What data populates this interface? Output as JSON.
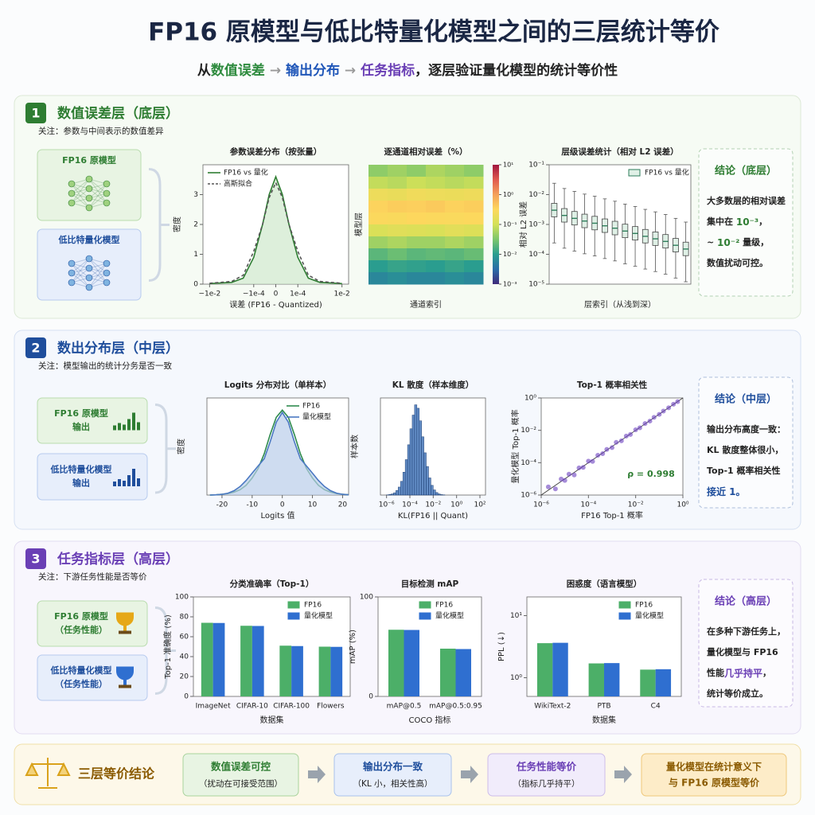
{
  "header": {
    "title": "FP16 原模型与低比特量化模型之间的三层统计等价",
    "subtitle": [
      {
        "text": "从",
        "color": "#222"
      },
      {
        "text": "数值误差",
        "color": "#2e8b3e"
      },
      {
        "text": " → ",
        "color": "#999"
      },
      {
        "text": "输出分布",
        "color": "#1f56b8"
      },
      {
        "text": " → ",
        "color": "#999"
      },
      {
        "text": "任务指标",
        "color": "#6a3fb5"
      },
      {
        "text": "，逐层验证量化模型的统计等价性",
        "color": "#222"
      }
    ]
  },
  "layers": [
    {
      "number": "1",
      "title": "数值误差层（底层）",
      "color": "#2e7d32",
      "note": "关注：参数与中间表示的数值差异",
      "inputs": [
        [
          "FP16 原模型"
        ],
        [
          "低比特量化模型"
        ]
      ],
      "conclusion": {
        "title": "结论（底层）",
        "lines": [
          [
            {
              "text": "大多数层的相对误差",
              "hl": false
            }
          ],
          [
            {
              "text": "集中在 ",
              "hl": false
            },
            {
              "text": "10⁻³",
              "hl": true
            },
            {
              "text": "，",
              "hl": false
            }
          ],
          [
            {
              "text": "~ ",
              "hl": false
            },
            {
              "text": "10⁻²",
              "hl": true
            },
            {
              "text": " 量级，",
              "hl": false
            }
          ],
          [
            {
              "text": "数值扰动可控。",
              "hl": false
            }
          ]
        ]
      }
    },
    {
      "number": "2",
      "title": "数出分布层（中层）",
      "color": "#1f4e9c",
      "note": "关注：模型输出的统计分务是否一致",
      "inputs": [
        [
          "FP16 原模型",
          "输出"
        ],
        [
          "低比特量化模型",
          "输出"
        ]
      ],
      "conclusion": {
        "title": "结论（中层）",
        "lines": [
          [
            {
              "text": "输出分布高度一致：",
              "hl": false
            }
          ],
          [
            {
              "text": "KL 散度整体很小，",
              "hl": false
            }
          ],
          [
            {
              "text": "Top-1 概率相关性",
              "hl": false
            }
          ],
          [
            {
              "text": "接近 1。",
              "hl": true
            }
          ]
        ]
      }
    },
    {
      "number": "3",
      "title": "任务指标层（高层）",
      "color": "#6a3fb5",
      "note": "关注：下游任务性能是否等价",
      "inputs": [
        [
          "FP16 原模型",
          "（任务性能）"
        ],
        [
          "低比特量化模型",
          "（任务性能）"
        ]
      ],
      "conclusion": {
        "title": "结论（高层）",
        "lines": [
          [
            {
              "text": "在多种下游任务上，",
              "hl": false
            }
          ],
          [
            {
              "text": "量化模型与 FP16",
              "hl": false
            }
          ],
          [
            {
              "text": "性能",
              "hl": false
            },
            {
              "text": "几乎持平",
              "hl": true
            },
            {
              "text": "，",
              "hl": false
            }
          ],
          [
            {
              "text": "统计等价成立。",
              "hl": false
            }
          ]
        ]
      }
    }
  ],
  "footer": {
    "title": "三层等价结论",
    "steps": [
      {
        "title": "数值误差可控",
        "sub": "（扰动在可接受范围）"
      },
      {
        "title": "输出分布一致",
        "sub": "（KL 小，相关性高）"
      },
      {
        "title": "任务性能等价",
        "sub": "（指标几乎持平）"
      }
    ],
    "result": [
      "量化模型在统计意义下",
      "与 FP16 原模型等价"
    ]
  },
  "chart_data": [
    {
      "type": "line",
      "title": "参数误差分布（按张量）",
      "xlabel": "误差 (FP16 - Quantized)",
      "ylabel": "密度",
      "xscale": "symlog",
      "linthresh": 0.0001,
      "xlim": [
        -0.02,
        0.02
      ],
      "ylim": [
        0,
        4
      ],
      "xticks": [
        {
          "value": -0.01,
          "label": "−1e-2"
        },
        {
          "value": -0.0001,
          "label": "−1e-4"
        },
        0,
        {
          "value": 0.0001,
          "label": "1e-4"
        },
        {
          "value": 0.01,
          "label": "1e-2"
        }
      ],
      "yticks": [
        0,
        1,
        2,
        3
      ],
      "legend": "upper left",
      "x": [
        -0.01,
        -0.001,
        -0.0003,
        -0.0001,
        -6e-05,
        -3e-05,
        0,
        3e-05,
        6e-05,
        0.0001,
        0.0003,
        0.001,
        0.01
      ],
      "series": [
        {
          "name": "FP16 vs 量化",
          "color": "#2e7d32",
          "fill": "#cfe8cc",
          "dash": false,
          "values": [
            0.02,
            0.06,
            0.2,
            0.9,
            2.0,
            3.0,
            3.6,
            3.0,
            2.0,
            0.9,
            0.2,
            0.06,
            0.02
          ]
        },
        {
          "name": "高斯拟合",
          "color": "#555555",
          "dash": true,
          "values": [
            0.03,
            0.09,
            0.3,
            1.1,
            2.0,
            2.9,
            3.4,
            2.9,
            2.0,
            1.1,
            0.3,
            0.09,
            0.03
          ]
        }
      ]
    },
    {
      "type": "heatmap",
      "title": "逐通道相对误差（%）",
      "xlabel": "通道索引",
      "ylabel": "模型层",
      "zscale": "log",
      "zlim": [
        0.001,
        10
      ],
      "zticks": [
        {
          "value": 0.001,
          "label": "10⁻³"
        },
        {
          "value": 0.01,
          "label": "10⁻²"
        },
        {
          "value": 0.1,
          "label": "10⁻¹"
        },
        {
          "value": 1,
          "label": "10⁰"
        },
        {
          "value": 10,
          "label": "10¹"
        }
      ],
      "colormap": [
        "#3f2a7a",
        "#2b6ca8",
        "#2a9d8f",
        "#7cc66c",
        "#d4e157",
        "#fdd85d",
        "#f4a15a",
        "#e05a4f",
        "#a0153e"
      ],
      "z": [
        [
          0.04,
          0.05,
          0.04,
          0.06,
          0.05,
          0.04
        ],
        [
          0.08,
          0.07,
          0.09,
          0.08,
          0.07,
          0.08
        ],
        [
          0.2,
          0.18,
          0.22,
          0.2,
          0.19,
          0.21
        ],
        [
          0.35,
          0.4,
          0.38,
          0.42,
          0.36,
          0.39
        ],
        [
          0.3,
          0.28,
          0.32,
          0.3,
          0.29,
          0.31
        ],
        [
          0.12,
          0.14,
          0.13,
          0.12,
          0.15,
          0.13
        ],
        [
          0.05,
          0.06,
          0.05,
          0.05,
          0.06,
          0.05
        ],
        [
          0.02,
          0.025,
          0.02,
          0.022,
          0.02,
          0.024
        ],
        [
          0.01,
          0.012,
          0.011,
          0.01,
          0.012,
          0.01
        ],
        [
          0.006,
          0.007,
          0.006,
          0.006,
          0.007,
          0.006
        ]
      ]
    },
    {
      "type": "box",
      "title": "层级误差统计（相对 L2 误差）",
      "xlabel": "层索引（从浅到深）",
      "ylabel": "相对 L2 误差",
      "yscale": "log",
      "ylim": [
        1e-05,
        0.1
      ],
      "yticks": [
        {
          "value": 1e-05,
          "label": "10⁻⁵"
        },
        {
          "value": 0.0001,
          "label": "10⁻⁴"
        },
        {
          "value": 0.001,
          "label": "10⁻³"
        },
        {
          "value": 0.01,
          "label": "10⁻²"
        },
        {
          "value": 0.1,
          "label": "10⁻¹"
        }
      ],
      "legend": "upper right",
      "series": [
        {
          "name": "FP16 vs 量化",
          "color": "#2e7d5b",
          "fill": "#dff0e6",
          "boxes": [
            {
              "min": 0.00024,
              "q1": 0.0018,
              "median": 0.003,
              "q3": 0.0051,
              "max": 0.024
            },
            {
              "min": 0.00016,
              "q1": 0.0012,
              "median": 0.002,
              "q3": 0.0034,
              "max": 0.016
            },
            {
              "min": 0.000128,
              "q1": 0.00096,
              "median": 0.0016,
              "q3": 0.00272,
              "max": 0.0128
            },
            {
              "min": 0.000104,
              "q1": 0.00078,
              "median": 0.0013,
              "q3": 0.00221,
              "max": 0.0104
            },
            {
              "min": 8.8e-05,
              "q1": 0.00066,
              "median": 0.0011,
              "q3": 0.00187,
              "max": 0.0088
            },
            {
              "min": 7.2e-05,
              "q1": 0.00054,
              "median": 0.0009,
              "q3": 0.00153,
              "max": 0.0072
            },
            {
              "min": 6e-05,
              "q1": 0.00045,
              "median": 0.00075,
              "q3": 0.001275,
              "max": 0.006
            },
            {
              "min": 4.8e-05,
              "q1": 0.00036,
              "median": 0.0006,
              "q3": 0.00102,
              "max": 0.0048
            },
            {
              "min": 4e-05,
              "q1": 0.0003,
              "median": 0.0005,
              "q3": 0.00085,
              "max": 0.004
            },
            {
              "min": 3.2e-05,
              "q1": 0.00024,
              "median": 0.0004,
              "q3": 0.00068,
              "max": 0.0032
            },
            {
              "min": 2.64e-05,
              "q1": 0.000198,
              "median": 0.00033,
              "q3": 0.000561,
              "max": 0.00264
            },
            {
              "min": 2.16e-05,
              "q1": 0.000162,
              "median": 0.00027,
              "q3": 0.000459,
              "max": 0.00216
            },
            {
              "min": 1.6e-05,
              "q1": 0.00012,
              "median": 0.0002,
              "q3": 0.00034,
              "max": 0.0016
            },
            {
              "min": 1.2e-05,
              "q1": 9e-05,
              "median": 0.00015,
              "q3": 0.000255,
              "max": 0.0012
            }
          ]
        }
      ]
    },
    {
      "type": "line",
      "title": "Logits 分布对比（单样本）",
      "xlabel": "Logits 值",
      "ylabel": "密度",
      "xlim": [
        -25,
        22
      ],
      "ylim": [
        0,
        0.4
      ],
      "xticks": [
        -20,
        -10,
        0,
        10,
        20
      ],
      "legend": "upper right",
      "x": [
        -24,
        -22,
        -20,
        -18,
        -16,
        -14,
        -12,
        -10,
        -8,
        -6,
        -4,
        -2,
        0,
        2,
        4,
        6,
        8,
        10,
        12,
        14,
        16,
        18,
        20,
        22
      ],
      "series": [
        {
          "name": "FP16",
          "color": "#2e8b4e",
          "dash": false,
          "values": [
            0,
            0.001,
            0.003,
            0.006,
            0.012,
            0.022,
            0.04,
            0.07,
            0.11,
            0.17,
            0.25,
            0.32,
            0.35,
            0.32,
            0.25,
            0.17,
            0.11,
            0.07,
            0.04,
            0.022,
            0.012,
            0.006,
            0.003,
            0.001
          ]
        },
        {
          "name": "量化模型",
          "color": "#4a78c2",
          "fill": "#b9cde9",
          "dash": false,
          "values": [
            0,
            0.001,
            0.003,
            0.008,
            0.018,
            0.035,
            0.06,
            0.09,
            0.12,
            0.15,
            0.22,
            0.3,
            0.34,
            0.3,
            0.22,
            0.15,
            0.12,
            0.09,
            0.06,
            0.035,
            0.018,
            0.008,
            0.003,
            0.001
          ]
        }
      ]
    },
    {
      "type": "histogram",
      "title": "KL 散度（样本维度）",
      "xlabel": "KL(FP16 || Quant)",
      "ylabel": "样本数",
      "xscale": "log",
      "xlim": [
        3e-07,
        300
      ],
      "ylim": [
        0,
        850
      ],
      "color": "#3b6fb6",
      "xticks": [
        {
          "value": 1e-06,
          "label": "10⁻⁶"
        },
        {
          "value": 0.0001,
          "label": "10⁻⁴"
        },
        {
          "value": 0.01,
          "label": "10⁻²"
        },
        {
          "value": 1,
          "label": "10⁰"
        },
        {
          "value": 100,
          "label": "10²"
        }
      ],
      "bins": [
        1e-06,
        1.585e-06,
        2.512e-06,
        3.981e-06,
        6.31e-06,
        1e-05,
        1.585e-05,
        2.512e-05,
        3.981e-05,
        6.31e-05,
        0.0001,
        0.0001585,
        0.0002512,
        0.0003981,
        0.000631,
        0.001,
        0.001585,
        0.002512,
        0.003981,
        0.00631,
        0.01,
        0.01585,
        0.02512,
        0.03981,
        0.0631,
        0.1
      ],
      "counts": [
        2,
        5,
        10,
        20,
        40,
        70,
        120,
        200,
        310,
        440,
        580,
        700,
        790,
        760,
        650,
        510,
        370,
        250,
        150,
        85,
        45,
        22,
        10,
        4,
        2
      ]
    },
    {
      "type": "scatter",
      "title": "Top-1 概率相关性",
      "xlabel": "FP16 Top-1 概率",
      "ylabel": "量化模型 Top-1 概率",
      "xscale": "log",
      "yscale": "log",
      "xlim": [
        1e-06,
        1
      ],
      "ylim": [
        1e-06,
        1
      ],
      "color": "#6a3fc0",
      "xticks": [
        {
          "value": 1e-06,
          "label": "10⁻⁶"
        },
        {
          "value": 0.0001,
          "label": "10⁻⁴"
        },
        {
          "value": 0.01,
          "label": "10⁻²"
        },
        {
          "value": 1,
          "label": "10⁰"
        }
      ],
      "yticks": [
        {
          "value": 1e-06,
          "label": "10⁻⁶"
        },
        {
          "value": 0.0001,
          "label": "10⁻⁴"
        },
        {
          "value": 0.01,
          "label": "10⁻²"
        },
        {
          "value": 1,
          "label": "10⁰"
        }
      ],
      "annotation": {
        "text": "ρ = 0.998",
        "color": "#2e7d32"
      },
      "x": [
        2e-06,
        4e-06,
        7e-06,
        1e-05,
        1.5e-05,
        2.5e-05,
        4e-05,
        6e-05,
        0.0001,
        0.00015,
        0.00025,
        0.0004,
        0.0006,
        0.001,
        0.0015,
        0.0025,
        0.004,
        0.006,
        0.01,
        0.015,
        0.025,
        0.04,
        0.06,
        0.1,
        0.15,
        0.25,
        0.4,
        0.6
      ],
      "values": [
        3.2e-06,
        2.4e-06,
        9.8e-06,
        8e-06,
        1.95e-05,
        1.75e-05,
        4.8e-05,
        5.1e-05,
        0.000125,
        0.00012,
        0.0002875,
        0.00036,
        0.00066,
        0.00085,
        0.0018,
        0.00225,
        0.0044,
        0.00552,
        0.0108,
        0.01425,
        0.02625,
        0.0372,
        0.0636,
        0.097,
        0.1545,
        0.245,
        0.408,
        0.594
      ]
    },
    {
      "type": "bar",
      "title": "分类准确率（Top-1）",
      "xlabel": "数据集",
      "ylabel": "Top-1 准确度 (%)",
      "ylim": [
        0,
        100
      ],
      "yticks": [
        0,
        20,
        40,
        60,
        80,
        100
      ],
      "legend": "upper right",
      "categories": [
        "ImageNet",
        "CIFAR-10",
        "CIFAR-100",
        "Flowers"
      ],
      "series": [
        {
          "name": "FP16",
          "color": "#4caf68",
          "values": [
            74,
            71,
            51,
            50
          ]
        },
        {
          "name": "量化模型",
          "color": "#2f6fd0",
          "values": [
            73.8,
            70.8,
            50.6,
            49.8
          ]
        }
      ]
    },
    {
      "type": "bar",
      "title": "目标检测 mAP",
      "xlabel": "COCO 指标",
      "ylabel": "mAP (%)",
      "ylim": [
        0,
        100
      ],
      "yticks": [
        0,
        100
      ],
      "legend": "upper right",
      "categories": [
        "mAP@0.5",
        "mAP@0.5:0.95"
      ],
      "series": [
        {
          "name": "FP16",
          "color": "#4caf68",
          "values": [
            67,
            48
          ]
        },
        {
          "name": "量化模型",
          "color": "#2f6fd0",
          "values": [
            66.8,
            47.6
          ]
        }
      ]
    },
    {
      "type": "bar",
      "title": "困惑度（语言模型）",
      "xlabel": "数据集",
      "ylabel": "PPL (↓)",
      "yscale": "log",
      "ylim": [
        0.5,
        20
      ],
      "yticks": [
        {
          "value": 1,
          "label": "10⁰"
        },
        {
          "value": 10,
          "label": "10¹"
        }
      ],
      "legend": "upper right",
      "categories": [
        "WikiText-2",
        "PTB",
        "C4"
      ],
      "series": [
        {
          "name": "FP16",
          "color": "#4caf68",
          "values": [
            3.6,
            1.7,
            1.35
          ]
        },
        {
          "name": "量化模型",
          "color": "#2f6fd0",
          "values": [
            3.65,
            1.72,
            1.37
          ]
        }
      ]
    }
  ]
}
